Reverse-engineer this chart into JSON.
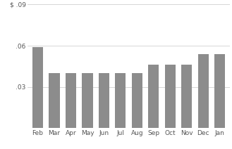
{
  "categories": [
    "Feb",
    "Mar",
    "Apr",
    "May",
    "Jun",
    "Jul",
    "Aug",
    "Sep",
    "Oct",
    "Nov",
    "Dec",
    "Jan"
  ],
  "values": [
    0.059,
    0.04,
    0.04,
    0.04,
    0.04,
    0.04,
    0.04,
    0.046,
    0.046,
    0.046,
    0.054,
    0.054
  ],
  "bar_color": "#8c8c8c",
  "ylim": [
    0,
    0.09
  ],
  "yticks": [
    0.03,
    0.06,
    0.09
  ],
  "ytick_labels": [
    ".03",
    ".06",
    "$ .09"
  ],
  "background_color": "#ffffff",
  "grid_color": "#d0d0d0"
}
